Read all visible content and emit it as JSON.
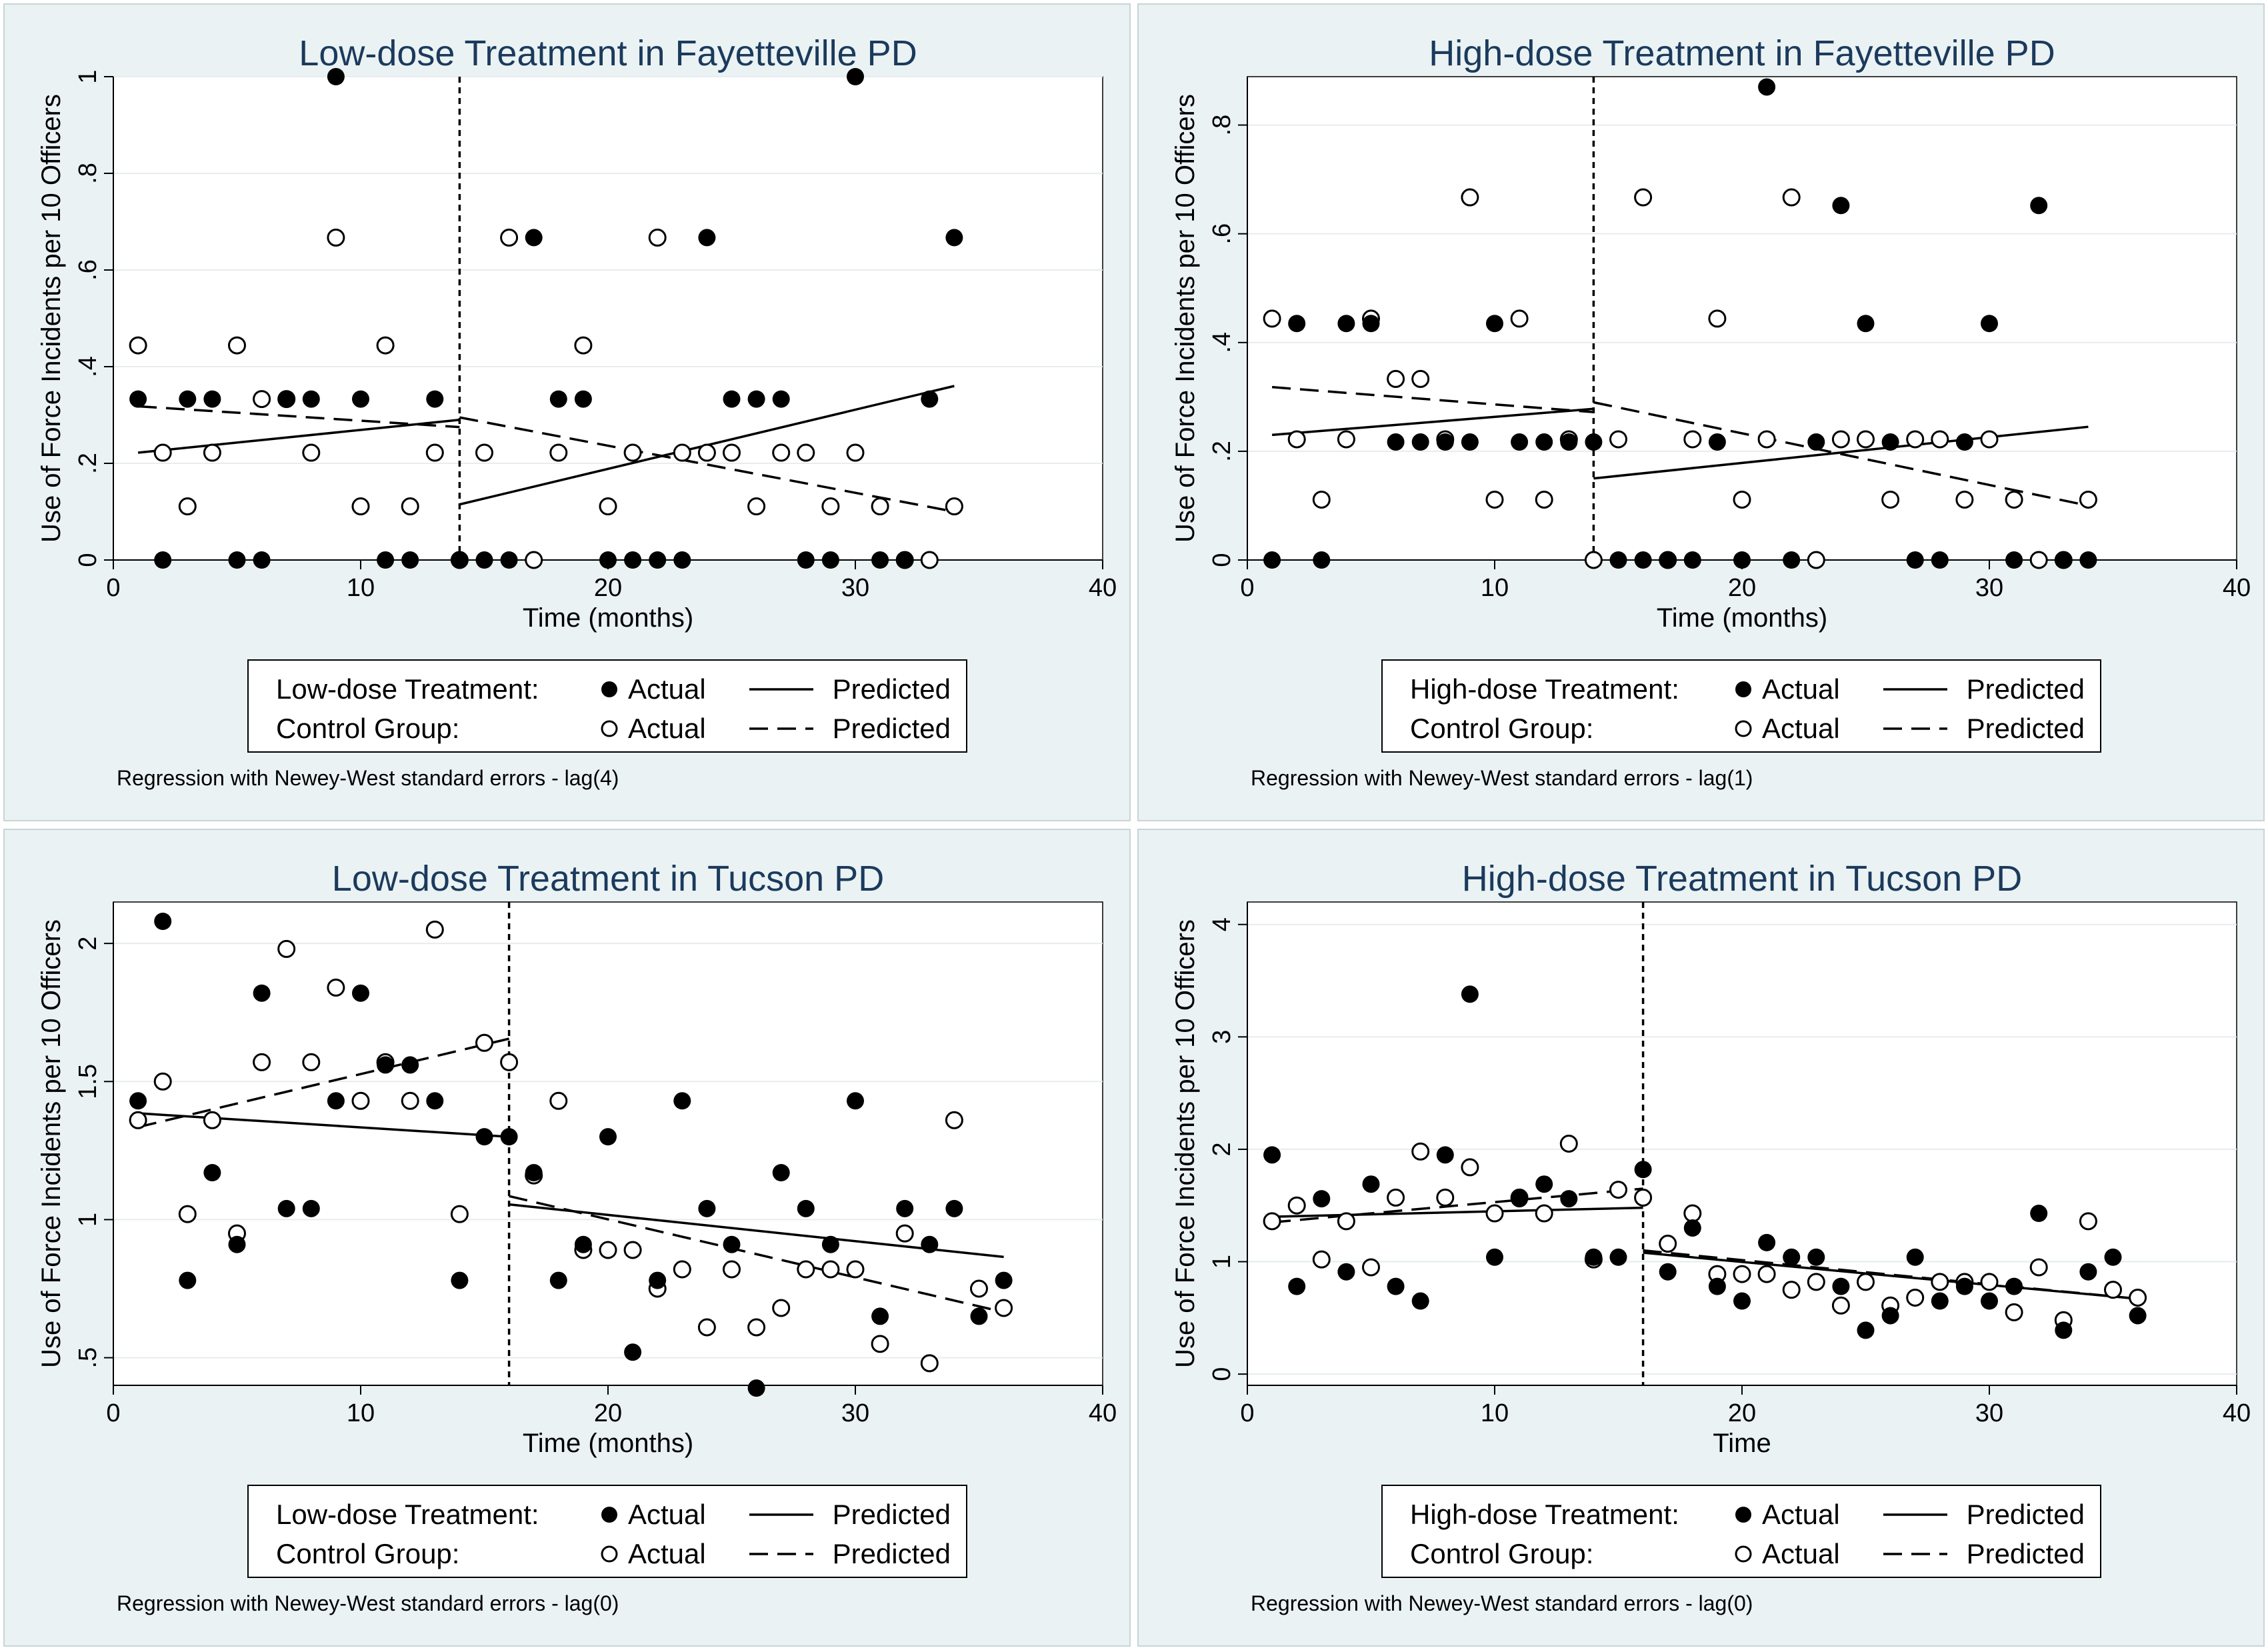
{
  "chart_data": [
    {
      "type": "scatter",
      "title": "Low-dose Treatment in Fayetteville PD",
      "xlabel": "Time (months)",
      "ylabel": "Use of Force Incidents per 10 Officers",
      "xlim": [
        0,
        40
      ],
      "ylim": [
        0,
        1
      ],
      "xticks": [
        0,
        10,
        20,
        30,
        40
      ],
      "yticks": [
        0,
        0.2,
        0.4,
        0.6,
        0.8,
        1
      ],
      "ytick_labels": [
        "0",
        ".2",
        ".4",
        ".6",
        ".8",
        "1"
      ],
      "intervention_x": 14,
      "grid": true,
      "legend_position": "bottom",
      "legend": {
        "treatment_label": "Low-dose Treatment:",
        "control_label": "Control Group:",
        "actual_label": "Actual",
        "predicted_label": "Predicted"
      },
      "note": "Regression with Newey-West standard errors - lag(4)",
      "series": [
        {
          "role": "treatment-actual",
          "x": [
            1,
            2,
            3,
            4,
            5,
            6,
            7,
            8,
            9,
            10,
            11,
            12,
            13,
            14,
            15,
            16,
            17,
            18,
            19,
            20,
            21,
            22,
            23,
            24,
            25,
            26,
            27,
            28,
            29,
            30,
            31,
            32,
            33,
            34
          ],
          "y": [
            0.333,
            0,
            0.333,
            0.333,
            0,
            0,
            0.333,
            0.333,
            1,
            0.333,
            0,
            0,
            0.333,
            0,
            0,
            0,
            0.667,
            0.333,
            0.333,
            0,
            0,
            0,
            0,
            0.667,
            0.333,
            0.333,
            0.333,
            0,
            0,
            1,
            0,
            0,
            0.333,
            0.667
          ]
        },
        {
          "role": "control-actual",
          "x": [
            1,
            2,
            3,
            4,
            5,
            6,
            7,
            8,
            9,
            10,
            11,
            12,
            13,
            14,
            15,
            16,
            17,
            18,
            19,
            20,
            21,
            22,
            23,
            24,
            25,
            26,
            27,
            28,
            29,
            30,
            31,
            32,
            33,
            34
          ],
          "y": [
            0.444,
            0.222,
            0.111,
            0.222,
            0.444,
            0.333,
            0.333,
            0.222,
            0.667,
            0.111,
            0.444,
            0.111,
            0.222,
            0,
            0.222,
            0.667,
            0,
            0.222,
            0.444,
            0.111,
            0.222,
            0.667,
            0.222,
            0.222,
            0.222,
            0.111,
            0.222,
            0.222,
            0.111,
            0.222,
            0.111,
            0,
            0,
            0.111
          ]
        },
        {
          "role": "treatment-predicted",
          "segments": [
            {
              "x": [
                1,
                14
              ],
              "y": [
                0.222,
                0.29
              ]
            },
            {
              "x": [
                14,
                34
              ],
              "y": [
                0.115,
                0.36
              ]
            }
          ]
        },
        {
          "role": "control-predicted",
          "segments": [
            {
              "x": [
                1,
                14
              ],
              "y": [
                0.318,
                0.275
              ]
            },
            {
              "x": [
                14,
                34
              ],
              "y": [
                0.295,
                0.1
              ]
            }
          ]
        }
      ]
    },
    {
      "type": "scatter",
      "title": "High-dose Treatment in Fayetteville PD",
      "xlabel": "Time (months)",
      "ylabel": "Use of Force Incidents per 10 Officers",
      "xlim": [
        0,
        40
      ],
      "ylim": [
        0,
        0.889
      ],
      "xticks": [
        0,
        10,
        20,
        30,
        40
      ],
      "yticks": [
        0,
        0.2,
        0.4,
        0.6,
        0.8
      ],
      "ytick_labels": [
        "0",
        ".2",
        ".4",
        ".6",
        ".8"
      ],
      "intervention_x": 14,
      "grid": true,
      "legend_position": "bottom",
      "legend": {
        "treatment_label": "High-dose Treatment:",
        "control_label": "Control Group:",
        "actual_label": "Actual",
        "predicted_label": "Predicted"
      },
      "note": "Regression with Newey-West standard errors - lag(1)",
      "series": [
        {
          "role": "treatment-actual",
          "x": [
            1,
            2,
            3,
            4,
            5,
            6,
            7,
            8,
            9,
            10,
            11,
            12,
            13,
            14,
            15,
            16,
            17,
            18,
            19,
            20,
            21,
            22,
            23,
            24,
            25,
            26,
            27,
            28,
            29,
            30,
            31,
            32,
            33,
            34
          ],
          "y": [
            0,
            0.435,
            0,
            0.435,
            0.435,
            0.217,
            0.217,
            0.217,
            0.217,
            0.435,
            0.217,
            0.217,
            0.217,
            0.217,
            0,
            0,
            0,
            0,
            0.217,
            0,
            0.87,
            0,
            0.217,
            0.652,
            0.435,
            0.217,
            0,
            0,
            0.217,
            0.435,
            0,
            0.652,
            0,
            0
          ]
        },
        {
          "role": "control-actual",
          "x": [
            1,
            2,
            3,
            4,
            5,
            6,
            7,
            8,
            9,
            10,
            11,
            12,
            13,
            14,
            15,
            16,
            17,
            18,
            19,
            20,
            21,
            22,
            23,
            24,
            25,
            26,
            27,
            28,
            29,
            30,
            31,
            32,
            33,
            34
          ],
          "y": [
            0.444,
            0.222,
            0.111,
            0.222,
            0.444,
            0.333,
            0.333,
            0.222,
            0.667,
            0.111,
            0.444,
            0.111,
            0.222,
            0,
            0.222,
            0.667,
            0,
            0.222,
            0.444,
            0.111,
            0.222,
            0.667,
            0,
            0.222,
            0.222,
            0.111,
            0.222,
            0.222,
            0.111,
            0.222,
            0.111,
            0,
            0,
            0.111
          ]
        },
        {
          "role": "treatment-predicted",
          "segments": [
            {
              "x": [
                1,
                14
              ],
              "y": [
                0.23,
                0.278
              ]
            },
            {
              "x": [
                14,
                34
              ],
              "y": [
                0.15,
                0.245
              ]
            }
          ]
        },
        {
          "role": "control-predicted",
          "segments": [
            {
              "x": [
                1,
                14
              ],
              "y": [
                0.318,
                0.272
              ]
            },
            {
              "x": [
                14,
                34
              ],
              "y": [
                0.29,
                0.1
              ]
            }
          ]
        }
      ]
    },
    {
      "type": "scatter",
      "title": "Low-dose Treatment in Tucson PD",
      "xlabel": "Time (months)",
      "ylabel": "Use of Force Incidents per 10 Officers",
      "xlim": [
        0,
        40
      ],
      "ylim": [
        0.4,
        2.15
      ],
      "xticks": [
        0,
        10,
        20,
        30,
        40
      ],
      "yticks": [
        0.5,
        1,
        1.5,
        2
      ],
      "ytick_labels": [
        ".5",
        "1",
        "1.5",
        "2"
      ],
      "intervention_x": 16,
      "grid": true,
      "legend_position": "bottom",
      "legend": {
        "treatment_label": "Low-dose Treatment:",
        "control_label": "Control Group:",
        "actual_label": "Actual",
        "predicted_label": "Predicted"
      },
      "note": "Regression with Newey-West standard errors - lag(0)",
      "series": [
        {
          "role": "treatment-actual",
          "x": [
            1,
            2,
            3,
            4,
            5,
            6,
            7,
            8,
            9,
            10,
            11,
            12,
            13,
            14,
            15,
            16,
            17,
            18,
            19,
            20,
            21,
            22,
            23,
            24,
            25,
            26,
            27,
            28,
            29,
            30,
            31,
            32,
            33,
            34,
            35,
            36
          ],
          "y": [
            1.43,
            2.08,
            0.78,
            1.17,
            0.91,
            1.82,
            1.04,
            1.04,
            1.43,
            1.82,
            1.56,
            1.56,
            1.43,
            0.78,
            1.3,
            1.3,
            1.17,
            0.78,
            0.91,
            1.3,
            0.52,
            0.78,
            1.43,
            1.04,
            0.91,
            0.39,
            1.17,
            1.04,
            0.91,
            1.43,
            0.65,
            1.04,
            0.91,
            1.04,
            0.65,
            0.78
          ]
        },
        {
          "role": "control-actual",
          "x": [
            1,
            2,
            3,
            4,
            5,
            6,
            7,
            8,
            9,
            10,
            11,
            12,
            13,
            14,
            15,
            16,
            17,
            18,
            19,
            20,
            21,
            22,
            23,
            24,
            25,
            26,
            27,
            28,
            29,
            30,
            31,
            32,
            33,
            34,
            35,
            36
          ],
          "y": [
            1.36,
            1.5,
            1.02,
            1.36,
            0.95,
            1.57,
            1.98,
            1.57,
            1.84,
            1.43,
            1.57,
            1.43,
            2.05,
            1.02,
            1.64,
            1.57,
            1.16,
            1.43,
            0.89,
            0.89,
            0.89,
            0.75,
            0.82,
            0.61,
            0.82,
            0.61,
            0.68,
            0.82,
            0.82,
            0.82,
            0.55,
            0.95,
            0.48,
            1.36,
            0.75,
            0.68
          ]
        },
        {
          "role": "treatment-predicted",
          "segments": [
            {
              "x": [
                1,
                16
              ],
              "y": [
                1.385,
                1.3
              ]
            },
            {
              "x": [
                16,
                36
              ],
              "y": [
                1.055,
                0.865
              ]
            }
          ]
        },
        {
          "role": "control-predicted",
          "segments": [
            {
              "x": [
                1,
                16
              ],
              "y": [
                1.335,
                1.655
              ]
            },
            {
              "x": [
                16,
                36
              ],
              "y": [
                1.085,
                0.665
              ]
            }
          ]
        }
      ]
    },
    {
      "type": "scatter",
      "title": "High-dose Treatment in Tucson PD",
      "xlabel": "Time",
      "ylabel": "Use of Force Incidents per 10 Officers",
      "xlim": [
        0,
        40
      ],
      "ylim": [
        -0.1,
        4.2
      ],
      "xticks": [
        0,
        10,
        20,
        30,
        40
      ],
      "yticks": [
        0,
        1,
        2,
        3,
        4
      ],
      "ytick_labels": [
        "0",
        "1",
        "2",
        "3",
        "4"
      ],
      "intervention_x": 16,
      "grid": true,
      "legend_position": "bottom",
      "legend": {
        "treatment_label": "High-dose Treatment:",
        "control_label": "Control Group:",
        "actual_label": "Actual",
        "predicted_label": "Predicted"
      },
      "note": "Regression with Newey-West standard errors - lag(0)",
      "series": [
        {
          "role": "treatment-actual",
          "x": [
            1,
            2,
            3,
            4,
            5,
            6,
            7,
            8,
            9,
            10,
            11,
            12,
            13,
            14,
            15,
            16,
            17,
            18,
            19,
            20,
            21,
            22,
            23,
            24,
            25,
            26,
            27,
            28,
            29,
            30,
            31,
            32,
            33,
            34,
            35,
            36
          ],
          "y": [
            1.95,
            0.78,
            1.56,
            0.91,
            1.69,
            0.78,
            0.65,
            1.95,
            3.38,
            1.04,
            1.56,
            1.69,
            1.56,
            1.04,
            1.04,
            1.82,
            0.91,
            1.3,
            0.78,
            0.65,
            1.17,
            1.04,
            1.04,
            0.78,
            0.39,
            0.52,
            1.04,
            0.65,
            0.78,
            0.65,
            0.78,
            1.43,
            0.39,
            0.91,
            1.04,
            0.52
          ]
        },
        {
          "role": "control-actual",
          "x": [
            1,
            2,
            3,
            4,
            5,
            6,
            7,
            8,
            9,
            10,
            11,
            12,
            13,
            14,
            15,
            16,
            17,
            18,
            19,
            20,
            21,
            22,
            23,
            24,
            25,
            26,
            27,
            28,
            29,
            30,
            31,
            32,
            33,
            34,
            35,
            36
          ],
          "y": [
            1.36,
            1.5,
            1.02,
            1.36,
            0.95,
            1.57,
            1.98,
            1.57,
            1.84,
            1.43,
            1.57,
            1.43,
            2.05,
            1.02,
            1.64,
            1.57,
            1.16,
            1.43,
            0.89,
            0.89,
            0.89,
            0.75,
            0.82,
            0.61,
            0.82,
            0.61,
            0.68,
            0.82,
            0.82,
            0.82,
            0.55,
            0.95,
            0.48,
            1.36,
            0.75,
            0.68
          ]
        },
        {
          "role": "treatment-predicted",
          "segments": [
            {
              "x": [
                1,
                16
              ],
              "y": [
                1.4,
                1.48
              ]
            },
            {
              "x": [
                16,
                36
              ],
              "y": [
                1.08,
                0.67
              ]
            }
          ]
        },
        {
          "role": "control-predicted",
          "segments": [
            {
              "x": [
                1,
                16
              ],
              "y": [
                1.35,
                1.65
              ]
            },
            {
              "x": [
                16,
                36
              ],
              "y": [
                1.1,
                0.67
              ]
            }
          ]
        }
      ]
    }
  ]
}
